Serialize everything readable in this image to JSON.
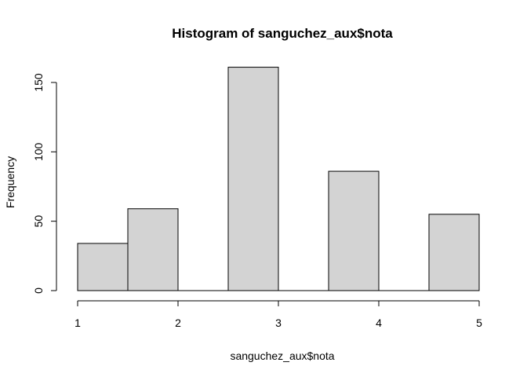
{
  "chart_data": {
    "type": "bar",
    "title": "Histogram of sanguchez_aux$nota",
    "xlabel": "sanguchez_aux$nota",
    "ylabel": "Frequency",
    "bins": [
      {
        "start": 1.0,
        "end": 1.5,
        "count": 34
      },
      {
        "start": 1.5,
        "end": 2.0,
        "count": 59
      },
      {
        "start": 2.0,
        "end": 2.5,
        "count": 0
      },
      {
        "start": 2.5,
        "end": 3.0,
        "count": 161
      },
      {
        "start": 3.0,
        "end": 3.5,
        "count": 0
      },
      {
        "start": 3.5,
        "end": 4.0,
        "count": 86
      },
      {
        "start": 4.0,
        "end": 4.5,
        "count": 0
      },
      {
        "start": 4.5,
        "end": 5.0,
        "count": 55
      }
    ],
    "xlim": [
      1,
      5
    ],
    "ylim": [
      0,
      170
    ],
    "x_ticks": [
      "1",
      "2",
      "3",
      "4",
      "5"
    ],
    "y_ticks": [
      "0",
      "50",
      "100",
      "150"
    ],
    "bar_fill": "#d3d3d3",
    "bar_stroke": "#000000",
    "grid": false,
    "legend": "none"
  }
}
